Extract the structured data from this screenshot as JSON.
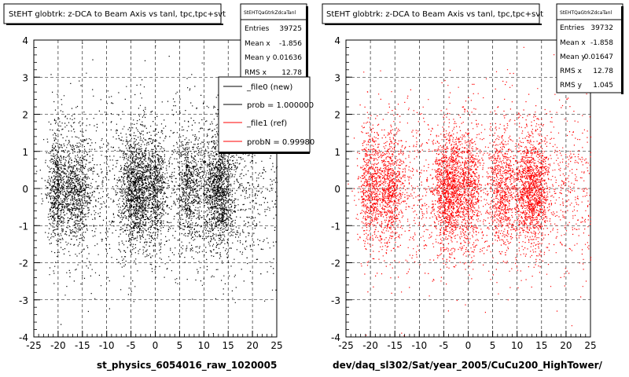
{
  "canvas_title": "St EHT globtrk: z-DCA to Beam Axis vs tanl, tpc,tpc+svt",
  "footer": {
    "left_run": "st_physics_6054016_raw_1020005",
    "right_path": "dev/daq_sl302/Sat/year_2005/CuCu200_HighTower/"
  },
  "pads": [
    {
      "title": "StEHT globtrk: z-DCA to Beam Axis vs tanl, tpc,tpc+svt",
      "stats": {
        "name": "StEHTQaGtrkZdcaTanl",
        "rows": [
          {
            "label": "Entries",
            "value": "39725"
          },
          {
            "label": "Mean x",
            "value": "-1.856"
          },
          {
            "label": "Mean y",
            "value": "0.01636"
          },
          {
            "label": "RMS x",
            "value": "12.78"
          }
        ]
      },
      "legend": [
        {
          "label": "_file0 (new)",
          "color": "#000000"
        },
        {
          "label": "prob = 1.000000",
          "color": "#000000"
        },
        {
          "label": "_file1 (ref)",
          "color": "#ff0000"
        },
        {
          "label": "probN = 0.99980",
          "color": "#ff0000"
        }
      ]
    },
    {
      "title": "StEHT globtrk: z-DCA to Beam Axis vs tanl, tpc,tpc+svt",
      "stats": {
        "name": "StEHTQaGtrkZdcaTanl",
        "rows": [
          {
            "label": "Entries",
            "value": "39732"
          },
          {
            "label": "Mean x",
            "value": "-1.858"
          },
          {
            "label": "Mean y",
            "value": "0.01647"
          },
          {
            "label": "RMS x",
            "value": "12.78"
          },
          {
            "label": "RMS y",
            "value": "1.045"
          }
        ]
      }
    }
  ],
  "chart_data": [
    {
      "type": "scatter",
      "title": "StEHT globtrk: z-DCA to Beam Axis vs tanl, tpc,tpc+svt",
      "xlim": [
        -25,
        25
      ],
      "ylim": [
        -4,
        4
      ],
      "x_ticks": [
        "-25",
        "-20",
        "-15",
        "-10",
        "-5",
        "0",
        "5",
        "10",
        "15",
        "20",
        "25"
      ],
      "y_ticks": [
        "-4",
        "-3",
        "-2",
        "-1",
        "0",
        "1",
        "2",
        "3",
        "4"
      ],
      "grid": true,
      "marker_color": "#000000",
      "entries": 39725,
      "clusters_x": [
        -20,
        -16,
        -5,
        -3,
        0,
        7,
        12,
        14
      ],
      "y_core_range": [
        -2,
        2
      ]
    },
    {
      "type": "scatter",
      "title": "StEHT globtrk: z-DCA to Beam Axis vs tanl, tpc,tpc+svt",
      "xlim": [
        -25,
        25
      ],
      "ylim": [
        -4,
        4
      ],
      "x_ticks": [
        "-25",
        "-20",
        "-15",
        "-10",
        "-5",
        "0",
        "5",
        "10",
        "15",
        "20",
        "25"
      ],
      "y_ticks": [
        "-4",
        "-3",
        "-2",
        "-1",
        "0",
        "1",
        "2",
        "3",
        "4"
      ],
      "grid": true,
      "marker_color": "#ff0000",
      "entries": 39732,
      "clusters_x": [
        -20,
        -16,
        -5,
        -3,
        0,
        7,
        12,
        14
      ],
      "y_core_range": [
        -2,
        2
      ]
    }
  ]
}
